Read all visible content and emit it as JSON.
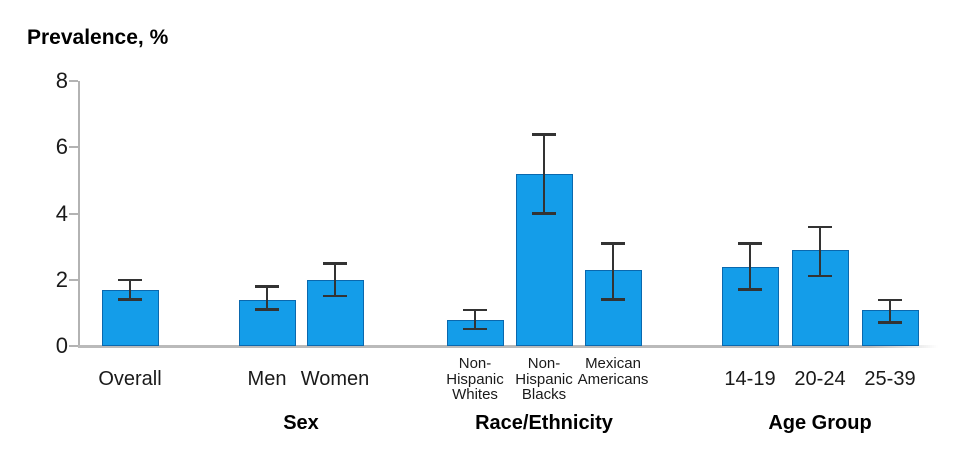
{
  "chart_data": {
    "type": "bar",
    "title": "Prevalence, %",
    "xlabel": "",
    "ylabel": "Prevalence, %",
    "ylim": [
      0,
      8
    ],
    "yticks": [
      0,
      2,
      4,
      6,
      8
    ],
    "grid": false,
    "legend": "none",
    "error_bars": true,
    "colors": {
      "bar_fill": "#149DE9",
      "bar_border": "#0A68AE",
      "error_bar": "#333333",
      "axis": "#b3b3b3",
      "text": "#1a1a1a"
    },
    "groups": [
      {
        "label": "",
        "small_labels": false,
        "bars": [
          {
            "label": "Overall",
            "label_lines": [
              "Overall"
            ],
            "value": 1.7,
            "ci_low": 1.4,
            "ci_high": 2.0
          }
        ]
      },
      {
        "label": "Sex",
        "small_labels": false,
        "bars": [
          {
            "label": "Men",
            "label_lines": [
              "Men"
            ],
            "value": 1.4,
            "ci_low": 1.1,
            "ci_high": 1.8
          },
          {
            "label": "Women",
            "label_lines": [
              "Women"
            ],
            "value": 2.0,
            "ci_low": 1.5,
            "ci_high": 2.5
          }
        ]
      },
      {
        "label": "Race/Ethnicity",
        "small_labels": true,
        "bars": [
          {
            "label": "Non-Hispanic Whites",
            "label_lines": [
              "Non-",
              "Hispanic",
              "Whites"
            ],
            "value": 0.8,
            "ci_low": 0.5,
            "ci_high": 1.1
          },
          {
            "label": "Non-Hispanic Blacks",
            "label_lines": [
              "Non-",
              "Hispanic",
              "Blacks"
            ],
            "value": 5.2,
            "ci_low": 4.0,
            "ci_high": 6.4
          },
          {
            "label": "Mexican Americans",
            "label_lines": [
              "Mexican",
              "Americans"
            ],
            "value": 2.3,
            "ci_low": 1.4,
            "ci_high": 3.1
          }
        ]
      },
      {
        "label": "Age Group",
        "small_labels": false,
        "bars": [
          {
            "label": "14-19",
            "label_lines": [
              "14-19"
            ],
            "value": 2.4,
            "ci_low": 1.7,
            "ci_high": 3.1
          },
          {
            "label": "20-24",
            "label_lines": [
              "20-24"
            ],
            "value": 2.9,
            "ci_low": 2.1,
            "ci_high": 3.6
          },
          {
            "label": "25-39",
            "label_lines": [
              "25-39"
            ],
            "value": 1.1,
            "ci_low": 0.7,
            "ci_high": 1.4
          }
        ]
      }
    ]
  }
}
